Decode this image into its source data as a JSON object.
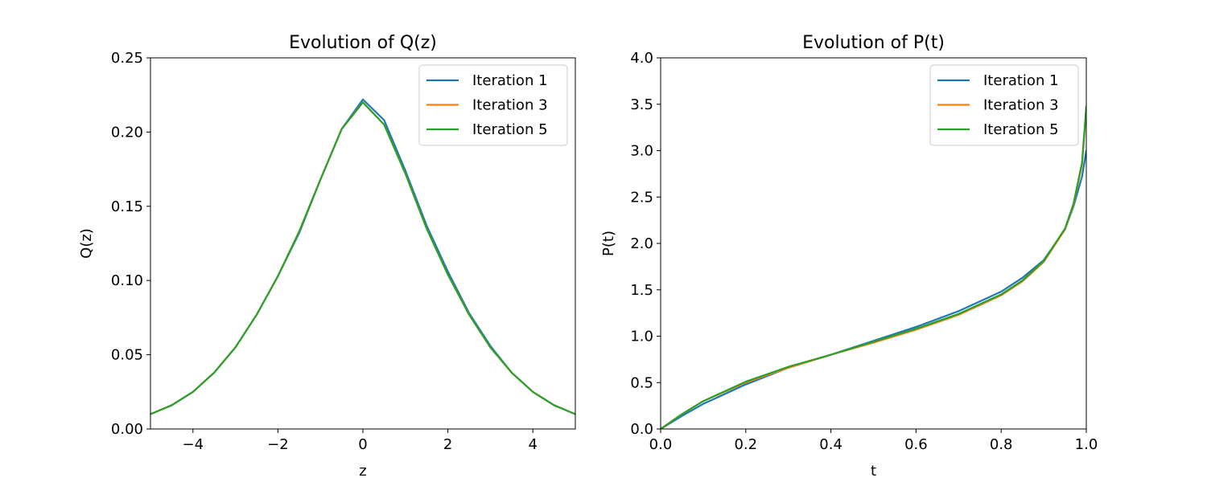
{
  "chart_data": [
    {
      "type": "line",
      "title": "Evolution of Q(z)",
      "xlabel": "z",
      "ylabel": "Q(z)",
      "xlim": [
        -5,
        5
      ],
      "ylim": [
        0,
        0.25
      ],
      "xticks": [
        -4,
        -2,
        0,
        2,
        4
      ],
      "xtick_labels": [
        "−4",
        "−2",
        "0",
        "2",
        "4"
      ],
      "yticks": [
        0,
        0.05,
        0.1,
        0.15,
        0.2,
        0.25
      ],
      "ytick_labels": [
        "0.00",
        "0.05",
        "0.10",
        "0.15",
        "0.20",
        "0.25"
      ],
      "grid": false,
      "legend": "top-right",
      "x": [
        -5,
        -4.5,
        -4,
        -3.5,
        -3,
        -2.5,
        -2,
        -1.5,
        -1,
        -0.5,
        0,
        0.5,
        1,
        1.5,
        2,
        2.5,
        3,
        3.5,
        4,
        4.5,
        5
      ],
      "series": [
        {
          "name": "Iteration 1",
          "color": "#1f77b4",
          "values": [
            0.01,
            0.016,
            0.025,
            0.038,
            0.055,
            0.077,
            0.103,
            0.132,
            0.168,
            0.202,
            0.222,
            0.208,
            0.174,
            0.137,
            0.106,
            0.078,
            0.056,
            0.038,
            0.025,
            0.016,
            0.01
          ]
        },
        {
          "name": "Iteration 3",
          "color": "#ff7f0e",
          "values": [
            0.01,
            0.016,
            0.025,
            0.038,
            0.055,
            0.077,
            0.103,
            0.133,
            0.168,
            0.202,
            0.22,
            0.205,
            0.172,
            0.135,
            0.104,
            0.077,
            0.055,
            0.038,
            0.025,
            0.016,
            0.01
          ]
        },
        {
          "name": "Iteration 5",
          "color": "#2ca02c",
          "values": [
            0.01,
            0.016,
            0.025,
            0.038,
            0.055,
            0.077,
            0.103,
            0.133,
            0.168,
            0.202,
            0.22,
            0.205,
            0.172,
            0.135,
            0.104,
            0.077,
            0.055,
            0.038,
            0.025,
            0.016,
            0.01
          ]
        }
      ]
    },
    {
      "type": "line",
      "title": "Evolution of P(t)",
      "xlabel": "t",
      "ylabel": "P(t)",
      "xlim": [
        0,
        1
      ],
      "ylim": [
        0,
        4
      ],
      "xticks": [
        0,
        0.2,
        0.4,
        0.6,
        0.8,
        1
      ],
      "xtick_labels": [
        "0.0",
        "0.2",
        "0.4",
        "0.6",
        "0.8",
        "1.0"
      ],
      "yticks": [
        0,
        0.5,
        1,
        1.5,
        2,
        2.5,
        3,
        3.5,
        4
      ],
      "ytick_labels": [
        "0.0",
        "0.5",
        "1.0",
        "1.5",
        "2.0",
        "2.5",
        "3.0",
        "3.5",
        "4.0"
      ],
      "grid": false,
      "legend": "top-right",
      "x": [
        0,
        0.05,
        0.1,
        0.2,
        0.3,
        0.4,
        0.5,
        0.6,
        0.7,
        0.8,
        0.85,
        0.9,
        0.95,
        0.97,
        0.99,
        1
      ],
      "series": [
        {
          "name": "Iteration 1",
          "color": "#1f77b4",
          "values": [
            0,
            0.14,
            0.27,
            0.48,
            0.66,
            0.8,
            0.95,
            1.1,
            1.27,
            1.48,
            1.63,
            1.82,
            2.15,
            2.4,
            2.72,
            3.0
          ]
        },
        {
          "name": "Iteration 3",
          "color": "#ff7f0e",
          "values": [
            0,
            0.16,
            0.3,
            0.5,
            0.66,
            0.8,
            0.93,
            1.07,
            1.23,
            1.44,
            1.59,
            1.8,
            2.15,
            2.42,
            2.85,
            3.45
          ]
        },
        {
          "name": "Iteration 5",
          "color": "#2ca02c",
          "values": [
            0,
            0.16,
            0.3,
            0.51,
            0.67,
            0.8,
            0.94,
            1.08,
            1.24,
            1.45,
            1.6,
            1.81,
            2.16,
            2.43,
            2.87,
            3.48
          ]
        }
      ]
    }
  ]
}
